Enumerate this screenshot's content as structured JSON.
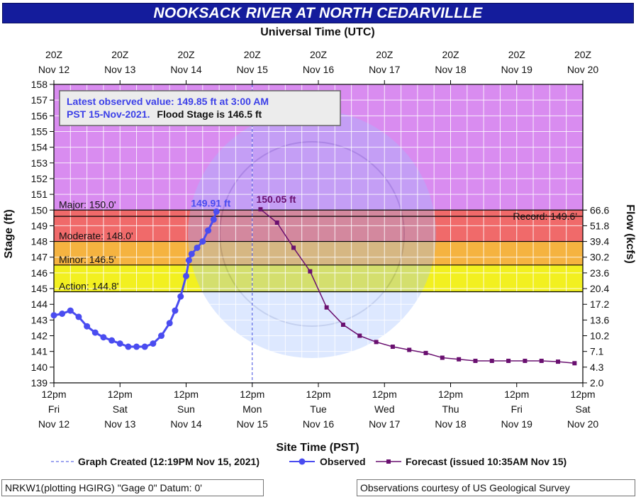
{
  "title": "NOOKSACK RIVER AT NORTH CEDARVILLLE",
  "top_axis_title": "Universal Time (UTC)",
  "bottom_axis_title": "Site Time (PST)",
  "y_left_title": "Stage (ft)",
  "y_right_title": "Flow (kcfs)",
  "info_box": {
    "line1": "Latest observed value: 149.85 ft at 3:00 AM",
    "line2_blue": "PST 15-Nov-2021.",
    "line2_black": "Flood Stage is 146.5 ft"
  },
  "legend": {
    "created": "Graph Created (12:19PM Nov 15, 2021)",
    "observed": "Observed",
    "forecast": "Forecast (issued 10:35AM Nov 15)"
  },
  "footer": {
    "left": "NRKW1(plotting HGIRG) \"Gage 0\" Datum: 0'",
    "right": "Observations courtesy of US Geological Survey"
  },
  "colors": {
    "title_bg": "#141c9c",
    "observed": "#4a4cf0",
    "forecast": "#6a1070",
    "major": "#d98cf0",
    "moderate": "#f06a6a",
    "minor": "#f5b340",
    "action": "#f2f020",
    "normal": "#ffffff"
  },
  "chart_data": {
    "type": "line",
    "x_unit": "hours since 12pm Fri Nov 12 (PST)",
    "xlim": [
      0,
      192
    ],
    "ylim": [
      139,
      158
    ],
    "y_ticks": [
      139,
      140,
      141,
      142,
      143,
      144,
      145,
      146,
      147,
      148,
      149,
      150,
      151,
      152,
      153,
      154,
      155,
      156,
      157,
      158
    ],
    "x_ticks_bottom": [
      {
        "x": 0,
        "lines": [
          "12pm",
          "Fri",
          "Nov 12"
        ]
      },
      {
        "x": 24,
        "lines": [
          "12pm",
          "Sat",
          "Nov 13"
        ]
      },
      {
        "x": 48,
        "lines": [
          "12pm",
          "Sun",
          "Nov 14"
        ]
      },
      {
        "x": 72,
        "lines": [
          "12pm",
          "Mon",
          "Nov 15"
        ]
      },
      {
        "x": 96,
        "lines": [
          "12pm",
          "Tue",
          "Nov 16"
        ]
      },
      {
        "x": 120,
        "lines": [
          "12pm",
          "Wed",
          "Nov 17"
        ]
      },
      {
        "x": 144,
        "lines": [
          "12pm",
          "Thu",
          "Nov 18"
        ]
      },
      {
        "x": 168,
        "lines": [
          "12pm",
          "Fri",
          "Nov 19"
        ]
      },
      {
        "x": 192,
        "lines": [
          "12pm",
          "Sat",
          "Nov 20"
        ]
      }
    ],
    "x_ticks_top": [
      {
        "x": 0,
        "lines": [
          "20Z",
          "Nov 12"
        ]
      },
      {
        "x": 24,
        "lines": [
          "20Z",
          "Nov 13"
        ]
      },
      {
        "x": 48,
        "lines": [
          "20Z",
          "Nov 14"
        ]
      },
      {
        "x": 72,
        "lines": [
          "20Z",
          "Nov 15"
        ]
      },
      {
        "x": 96,
        "lines": [
          "20Z",
          "Nov 16"
        ]
      },
      {
        "x": 120,
        "lines": [
          "20Z",
          "Nov 17"
        ]
      },
      {
        "x": 144,
        "lines": [
          "20Z",
          "Nov 18"
        ]
      },
      {
        "x": 168,
        "lines": [
          "20Z",
          "Nov 19"
        ]
      },
      {
        "x": 192,
        "lines": [
          "20Z",
          "Nov 20"
        ]
      }
    ],
    "flow_ticks": [
      {
        "stage": 139,
        "label": "2.0"
      },
      {
        "stage": 140,
        "label": "4.3"
      },
      {
        "stage": 141,
        "label": "7.1"
      },
      {
        "stage": 142,
        "label": "10.2"
      },
      {
        "stage": 143,
        "label": "13.6"
      },
      {
        "stage": 144,
        "label": "17.2"
      },
      {
        "stage": 145,
        "label": "20.4"
      },
      {
        "stage": 146,
        "label": "23.6"
      },
      {
        "stage": 147,
        "label": "30.2"
      },
      {
        "stage": 148,
        "label": "39.4"
      },
      {
        "stage": 149,
        "label": "51.8"
      },
      {
        "stage": 150,
        "label": "66.6"
      }
    ],
    "bands": [
      {
        "name": "normal",
        "from": 139,
        "to": 144.8
      },
      {
        "name": "action",
        "from": 144.8,
        "to": 146.5
      },
      {
        "name": "minor",
        "from": 146.5,
        "to": 148.0
      },
      {
        "name": "moderate",
        "from": 148.0,
        "to": 150.0
      },
      {
        "name": "major",
        "from": 150.0,
        "to": 158.0
      }
    ],
    "threshold_lines": [
      {
        "value": 150.0,
        "label": "Major: 150.0'",
        "side": "left"
      },
      {
        "value": 148.0,
        "label": "Moderate: 148.0'",
        "side": "left"
      },
      {
        "value": 146.5,
        "label": "Minor: 146.5'",
        "side": "left"
      },
      {
        "value": 144.8,
        "label": "Action: 144.8'",
        "side": "left"
      },
      {
        "value": 149.6,
        "label": "Record: 149.6'",
        "side": "right"
      }
    ],
    "created_x": 72,
    "observed": {
      "name": "Observed",
      "peak_label": "149.91 ft",
      "x": [
        0,
        3,
        6,
        9,
        12,
        15,
        18,
        21,
        24,
        27,
        30,
        33,
        36,
        39,
        42,
        44,
        46,
        48,
        49,
        50,
        52,
        54,
        56,
        58,
        59
      ],
      "y": [
        143.3,
        143.4,
        143.6,
        143.2,
        142.6,
        142.2,
        141.9,
        141.7,
        141.5,
        141.3,
        141.3,
        141.3,
        141.5,
        142.0,
        142.8,
        143.6,
        144.5,
        145.8,
        146.8,
        147.2,
        147.6,
        148.0,
        148.7,
        149.4,
        149.9
      ]
    },
    "forecast": {
      "name": "Forecast",
      "peak_label": "150.05 ft",
      "x": [
        75,
        81,
        87,
        93,
        99,
        105,
        111,
        117,
        123,
        129,
        135,
        141,
        147,
        153,
        159,
        165,
        171,
        177,
        183,
        189
      ],
      "y": [
        150.05,
        149.2,
        147.6,
        146.1,
        143.8,
        142.7,
        142.0,
        141.6,
        141.3,
        141.1,
        140.9,
        140.6,
        140.5,
        140.4,
        140.4,
        140.4,
        140.4,
        140.4,
        140.35,
        140.25
      ]
    }
  }
}
